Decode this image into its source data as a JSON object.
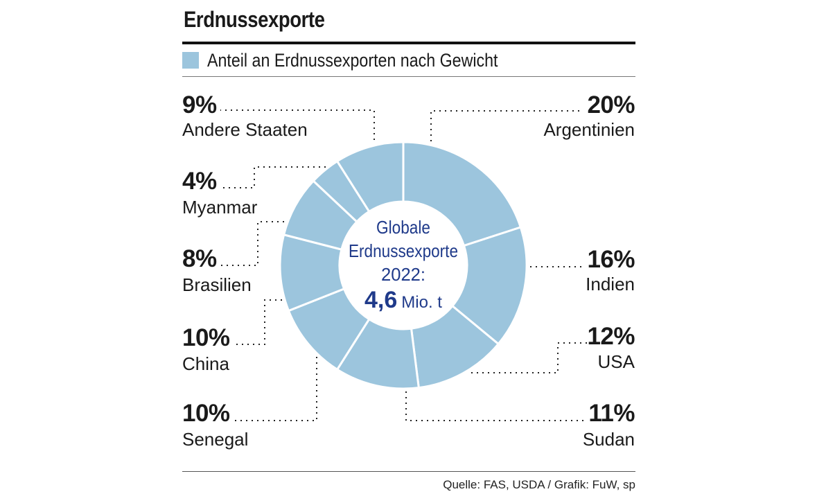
{
  "title": "Erdnussexporte",
  "legend": {
    "label": "Anteil an Erdnussexporten nach Gewicht",
    "color": "#9cc5dd"
  },
  "center_label": {
    "line1": "Globale",
    "line2": "Erdnussexporte",
    "line3": "2022:",
    "value": "4,6",
    "unit": "Mio. t"
  },
  "source": "Quelle: FAS, USDA / Grafik: FuW, sp",
  "colors": {
    "slice_fill": "#9cc5dd",
    "slice_stroke": "#ffffff",
    "center_text": "#1f3a8a",
    "text": "#1a1a1a"
  },
  "chart_data": {
    "type": "pie",
    "variant": "donut",
    "slices": [
      {
        "label": "Argentinien",
        "value": 20,
        "value_label": "20%"
      },
      {
        "label": "Indien",
        "value": 16,
        "value_label": "16%"
      },
      {
        "label": "USA",
        "value": 12,
        "value_label": "12%"
      },
      {
        "label": "Sudan",
        "value": 11,
        "value_label": "11%"
      },
      {
        "label": "Senegal",
        "value": 10,
        "value_label": "10%"
      },
      {
        "label": "China",
        "value": 10,
        "value_label": "10%"
      },
      {
        "label": "Brasilien",
        "value": 8,
        "value_label": "8%"
      },
      {
        "label": "Myanmar",
        "value": 4,
        "value_label": "4%"
      },
      {
        "label": "Andere Staaten",
        "value": 9,
        "value_label": "9%"
      }
    ],
    "start": "12 o'clock",
    "direction": "clockwise",
    "legend": "top-left"
  }
}
